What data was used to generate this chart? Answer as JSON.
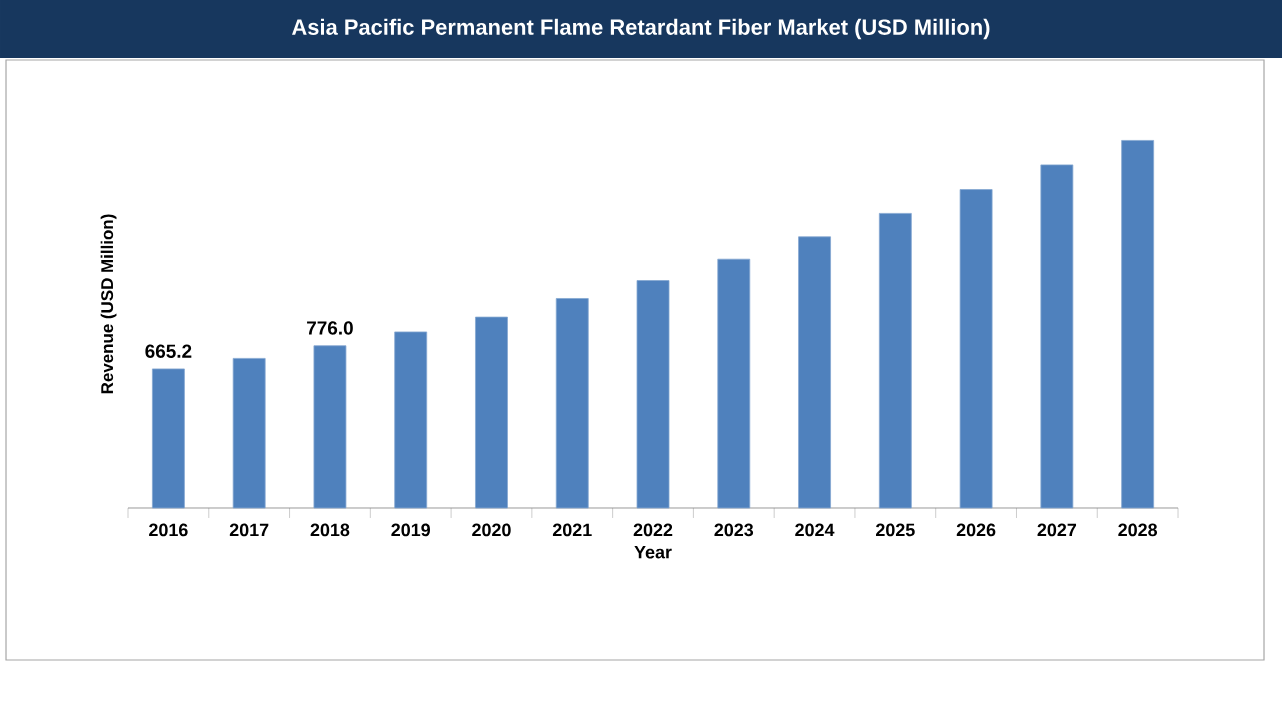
{
  "chart_data": {
    "type": "bar",
    "title": "Asia Pacific Permanent Flame Retardant Fiber Market (USD Million)",
    "xlabel": "Year",
    "ylabel": "Revenue (USD Million)",
    "categories": [
      "2016",
      "2017",
      "2018",
      "2019",
      "2020",
      "2021",
      "2022",
      "2023",
      "2024",
      "2025",
      "2026",
      "2027",
      "2028"
    ],
    "values": [
      665.2,
      715.5,
      776.0,
      842,
      913,
      1002,
      1088,
      1190,
      1297,
      1409,
      1523,
      1641,
      1758
    ],
    "value_labels": [
      "665.2",
      null,
      "776.0",
      null,
      null,
      null,
      null,
      null,
      null,
      null,
      null,
      null,
      null
    ],
    "color": "#4f81bd"
  }
}
